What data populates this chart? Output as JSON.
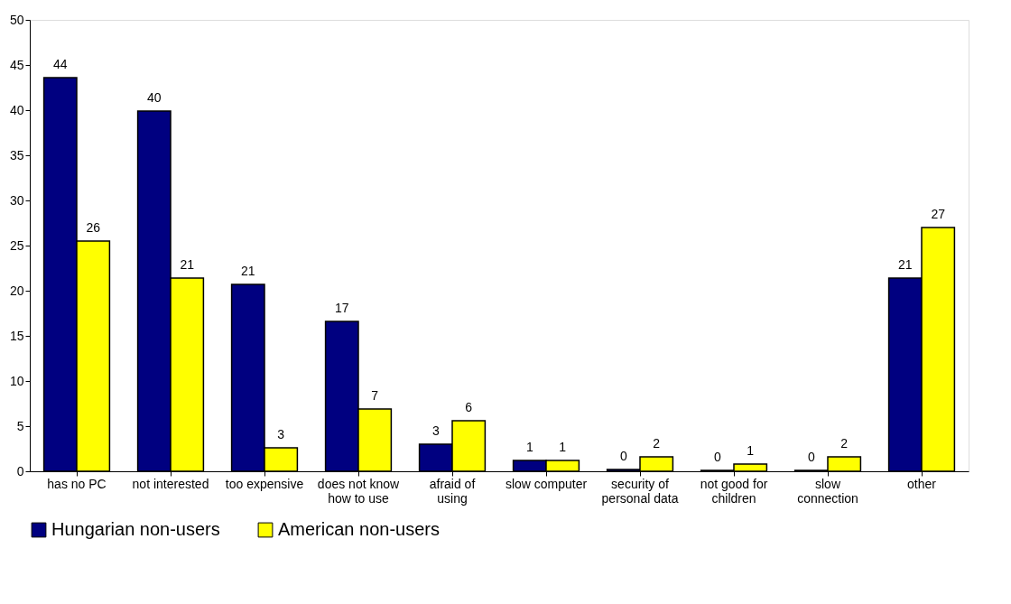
{
  "chart_data": {
    "type": "bar",
    "categories": [
      "has no PC",
      "not interested",
      "too expensive",
      "does not know how to use",
      "afraid of using",
      "slow computer",
      "security of personal data",
      "not good for children",
      "slow connection",
      "other"
    ],
    "series": [
      {
        "name": "Hungarian non-users",
        "color": "#000080",
        "values": [
          43.6,
          39.9,
          20.7,
          16.6,
          3.0,
          1.2,
          0.2,
          0.1,
          0.1,
          21.4
        ],
        "value_labels": [
          "44",
          "40",
          "21",
          "17",
          "3",
          "1",
          "0",
          "0",
          "0",
          "21"
        ]
      },
      {
        "name": "American non-users",
        "color": "#ffff00",
        "values": [
          25.5,
          21.4,
          2.6,
          6.9,
          5.6,
          1.2,
          1.6,
          0.8,
          1.6,
          27.0
        ],
        "value_labels": [
          "26",
          "21",
          "3",
          "7",
          "6",
          "1",
          "2",
          "1",
          "2",
          "27"
        ]
      }
    ],
    "ylim": [
      0,
      50
    ],
    "yticks": [
      0,
      5,
      10,
      15,
      20,
      25,
      30,
      35,
      40,
      45,
      50
    ],
    "grid": false,
    "legend": "bottom left"
  }
}
